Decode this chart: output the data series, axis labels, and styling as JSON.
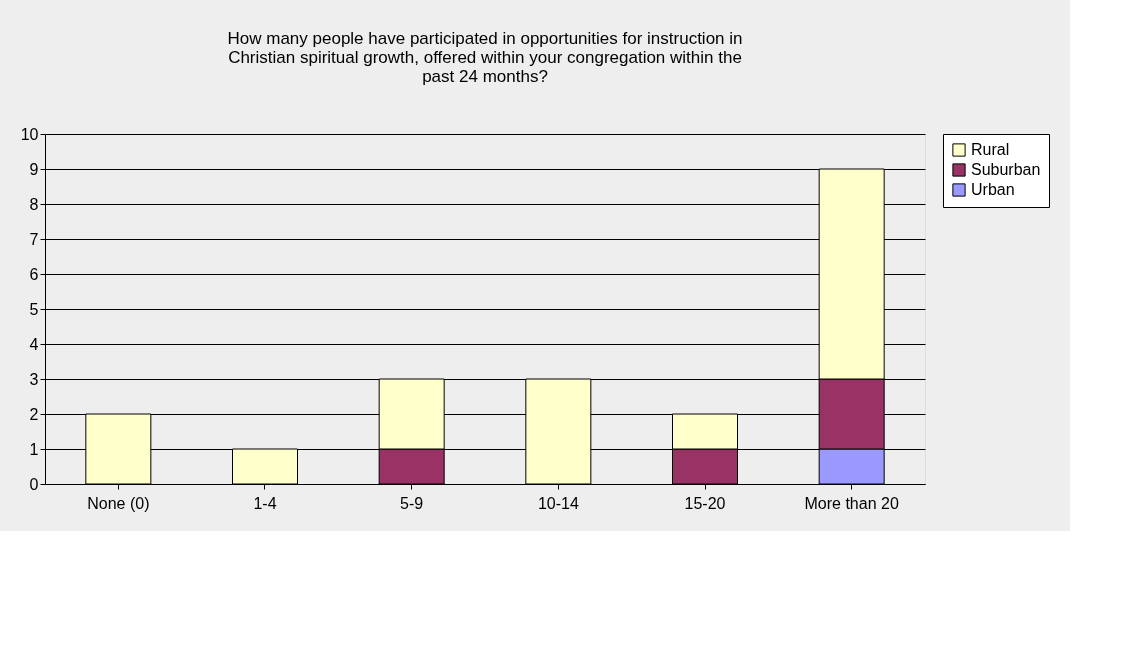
{
  "chart_data": {
    "type": "bar",
    "title": "How many people have participated in opportunities for instruction in Christian spiritual growth, offered within your congregation within the past 24 months?",
    "categories": [
      "None (0)",
      "1-4",
      "5-9",
      "10-14",
      "15-20",
      "More than 20"
    ],
    "stacked": true,
    "series": [
      {
        "name": "Urban",
        "color": "#9999ff",
        "values": [
          0,
          0,
          0,
          0,
          0,
          1
        ]
      },
      {
        "name": "Suburban",
        "color": "#993366",
        "values": [
          0,
          0,
          1,
          0,
          1,
          2
        ]
      },
      {
        "name": "Rural",
        "color": "#ffffcc",
        "values": [
          2,
          1,
          2,
          3,
          1,
          6
        ]
      }
    ],
    "ylim": [
      0,
      10
    ],
    "yticks": [
      0,
      1,
      2,
      3,
      4,
      5,
      6,
      7,
      8,
      9,
      10
    ],
    "grid": "y",
    "legend": "right"
  }
}
